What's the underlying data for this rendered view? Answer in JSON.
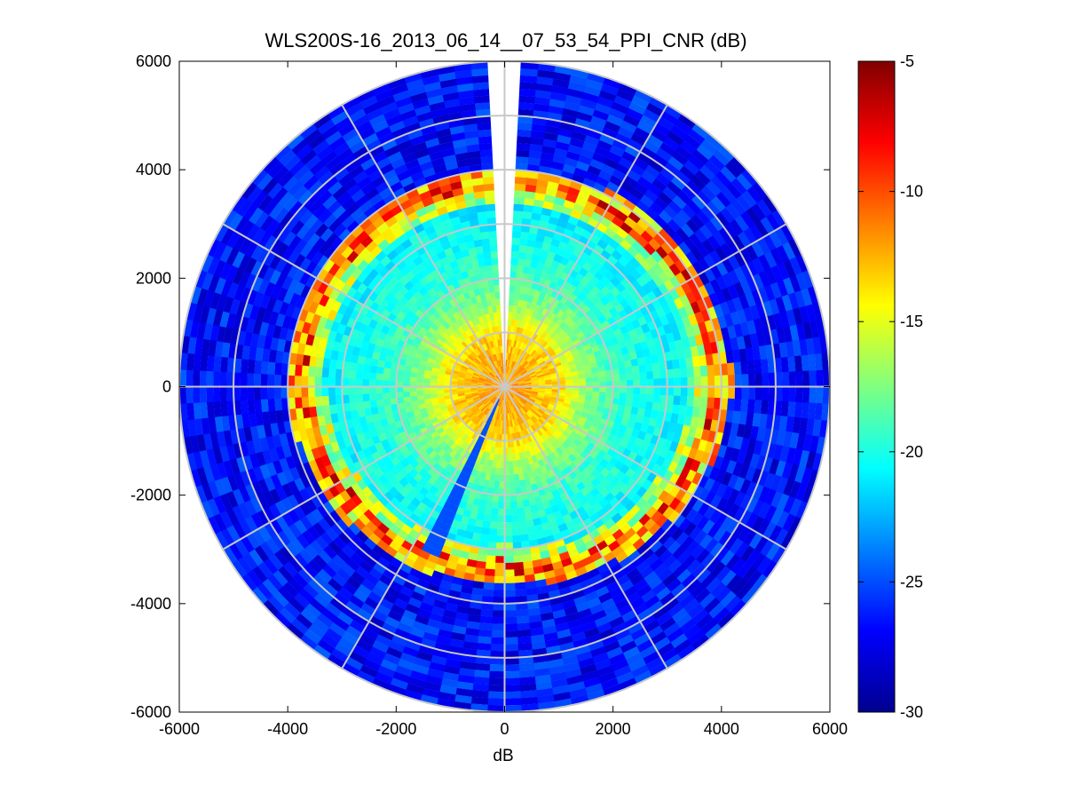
{
  "chart_data": {
    "type": "heatmap",
    "subtype": "polar-ppi",
    "title": "WLS200S-16_2013_06_14__07_53_54_PPI_CNR (dB)",
    "xlabel": "dB",
    "ylabel": "",
    "xlim": [
      -6000,
      6000
    ],
    "ylim": [
      -6000,
      6000
    ],
    "xticks": [
      -6000,
      -4000,
      -2000,
      0,
      2000,
      4000,
      6000
    ],
    "yticks": [
      -6000,
      -4000,
      -2000,
      0,
      2000,
      4000,
      6000
    ],
    "xtick_labels": [
      "-6000",
      "-4000",
      "-2000",
      "0",
      "2000",
      "4000",
      "6000"
    ],
    "ytick_labels": [
      "6000",
      "4000",
      "2000",
      "0",
      "-2000",
      "-4000",
      "-6000"
    ],
    "max_range_m": 6000,
    "range_rings_m": [
      1000,
      2000,
      3000,
      4000,
      5000,
      6000
    ],
    "spoke_angles_deg": [
      0,
      30,
      60,
      90,
      120,
      150,
      180,
      210,
      240,
      270,
      300,
      330
    ],
    "missing_sector_deg": [
      86,
      94
    ],
    "colorbar": {
      "min": -30,
      "max": -5,
      "ticks": [
        -5,
        -10,
        -15,
        -20,
        -25,
        -30
      ],
      "tick_labels": [
        "-5",
        "-10",
        "-15",
        "-20",
        "-25",
        "-30"
      ],
      "colormap": "jet"
    },
    "cnr_profile": {
      "description": "approximate CNR (dB) vs range: strong near lidar, decaying; bright rim ~3600-4000 m; low values beyond",
      "range_m": [
        0,
        500,
        1000,
        1500,
        2000,
        2500,
        3000,
        3400,
        3700,
        3900,
        4100,
        5000,
        6000
      ],
      "cnr_db": [
        -11.5,
        -12.5,
        -13.5,
        -17,
        -19,
        -20,
        -20.5,
        -21,
        -7,
        -10,
        -25,
        -27,
        -27.5
      ]
    },
    "rim_radius_m": {
      "north": 3700,
      "east": 3900,
      "south": 3300,
      "west": 3700
    }
  }
}
